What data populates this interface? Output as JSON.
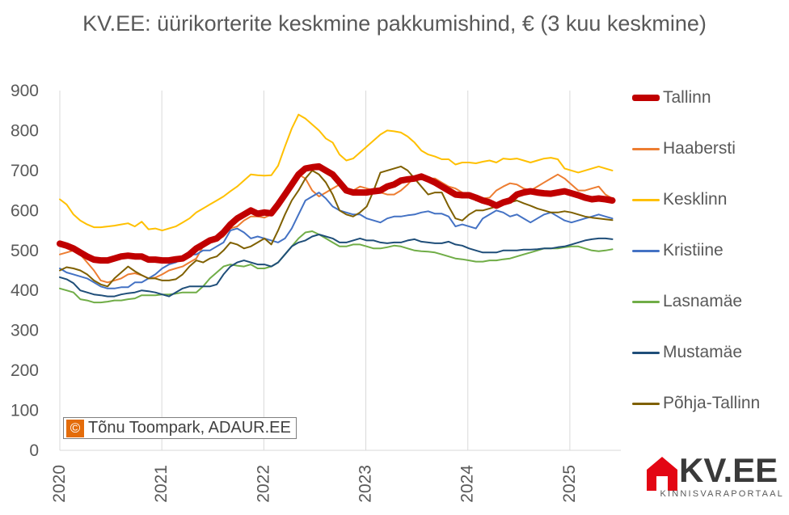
{
  "chart_data": {
    "type": "line",
    "title": "KV.EE: üürikorterite keskmine pakkumishind, € (3 kuu keskmine)",
    "ylim": [
      0,
      900
    ],
    "yticks": [
      0,
      100,
      200,
      300,
      400,
      500,
      600,
      700,
      800,
      900
    ],
    "xticks": [
      "2020",
      "2021",
      "2022",
      "2023",
      "2024",
      "2025"
    ],
    "x_range": [
      "2020-01",
      "2025-06"
    ],
    "grid": "vertical lines at years",
    "legend_position": "right",
    "series": [
      {
        "name": "Tallinn",
        "color": "#c00000",
        "width": 8,
        "values": [
          517,
          512,
          505,
          495,
          485,
          477,
          475,
          475,
          480,
          485,
          487,
          485,
          485,
          477,
          477,
          475,
          475,
          478,
          480,
          490,
          505,
          515,
          525,
          530,
          545,
          565,
          580,
          590,
          600,
          592,
          595,
          593,
          615,
          640,
          665,
          690,
          705,
          708,
          710,
          700,
          690,
          670,
          650,
          645,
          645,
          645,
          648,
          650,
          660,
          665,
          675,
          678,
          680,
          685,
          678,
          670,
          660,
          650,
          640,
          638,
          638,
          632,
          625,
          620,
          612,
          620,
          625,
          640,
          645,
          648,
          645,
          643,
          642,
          645,
          648,
          643,
          638,
          632,
          628,
          630,
          628,
          625
        ]
      },
      {
        "name": "Haabersti",
        "color": "#ed7d31",
        "width": 2,
        "values": [
          490,
          495,
          500,
          490,
          470,
          450,
          425,
          420,
          425,
          430,
          440,
          443,
          438,
          430,
          432,
          440,
          450,
          455,
          460,
          470,
          480,
          510,
          520,
          525,
          535,
          555,
          560,
          575,
          585,
          585,
          582,
          590,
          605,
          640,
          660,
          690,
          680,
          650,
          635,
          645,
          655,
          665,
          650,
          650,
          660,
          655,
          650,
          645,
          640,
          640,
          650,
          665,
          685,
          690,
          680,
          680,
          670,
          660,
          655,
          645,
          640,
          625,
          630,
          632,
          650,
          660,
          668,
          665,
          655,
          650,
          660,
          670,
          680,
          690,
          680,
          665,
          650,
          650,
          655,
          660,
          640,
          630
        ]
      },
      {
        "name": "Kesklinn",
        "color": "#ffc000",
        "width": 2,
        "values": [
          628,
          615,
          590,
          575,
          565,
          558,
          558,
          560,
          562,
          565,
          568,
          560,
          572,
          553,
          555,
          550,
          555,
          560,
          570,
          580,
          595,
          605,
          615,
          625,
          635,
          648,
          660,
          675,
          690,
          688,
          687,
          688,
          712,
          760,
          805,
          840,
          830,
          815,
          800,
          780,
          770,
          740,
          725,
          730,
          745,
          760,
          775,
          790,
          800,
          798,
          795,
          785,
          770,
          750,
          740,
          735,
          728,
          728,
          715,
          720,
          720,
          718,
          722,
          725,
          720,
          730,
          728,
          730,
          725,
          720,
          725,
          730,
          732,
          728,
          705,
          700,
          695,
          700,
          705,
          710,
          705,
          700
        ]
      },
      {
        "name": "Kristiine",
        "color": "#4472c4",
        "width": 2,
        "values": [
          455,
          445,
          440,
          435,
          430,
          420,
          410,
          405,
          405,
          408,
          408,
          420,
          420,
          430,
          440,
          455,
          465,
          470,
          480,
          490,
          490,
          500,
          500,
          510,
          520,
          550,
          555,
          545,
          530,
          535,
          530,
          525,
          520,
          530,
          555,
          590,
          625,
          635,
          645,
          630,
          610,
          600,
          595,
          590,
          590,
          580,
          575,
          570,
          580,
          585,
          585,
          588,
          590,
          595,
          598,
          592,
          592,
          585,
          560,
          565,
          560,
          555,
          580,
          590,
          600,
          595,
          585,
          590,
          580,
          570,
          580,
          590,
          595,
          585,
          575,
          570,
          575,
          580,
          585,
          590,
          585,
          580
        ]
      },
      {
        "name": "Lasnamäe",
        "color": "#70ad47",
        "width": 2,
        "values": [
          405,
          400,
          395,
          378,
          375,
          370,
          370,
          372,
          375,
          375,
          378,
          380,
          388,
          388,
          388,
          390,
          390,
          392,
          395,
          395,
          395,
          410,
          430,
          445,
          460,
          465,
          462,
          460,
          465,
          455,
          455,
          460,
          470,
          490,
          510,
          530,
          545,
          548,
          540,
          530,
          520,
          510,
          510,
          515,
          515,
          510,
          505,
          505,
          508,
          512,
          510,
          505,
          500,
          498,
          497,
          495,
          490,
          485,
          480,
          478,
          475,
          472,
          472,
          475,
          475,
          478,
          480,
          485,
          490,
          495,
          500,
          505,
          505,
          505,
          508,
          510,
          510,
          505,
          500,
          498,
          500,
          503
        ]
      },
      {
        "name": "Mustamäe",
        "color": "#1f4e79",
        "width": 2,
        "values": [
          433,
          428,
          418,
          400,
          395,
          390,
          388,
          385,
          385,
          390,
          393,
          395,
          400,
          398,
          395,
          390,
          385,
          395,
          405,
          410,
          410,
          410,
          410,
          415,
          440,
          460,
          470,
          475,
          470,
          465,
          465,
          460,
          470,
          490,
          510,
          520,
          525,
          535,
          540,
          535,
          530,
          520,
          520,
          525,
          530,
          525,
          525,
          520,
          518,
          520,
          520,
          525,
          528,
          522,
          520,
          518,
          518,
          522,
          515,
          512,
          505,
          500,
          495,
          495,
          495,
          500,
          500,
          500,
          502,
          502,
          503,
          505,
          505,
          508,
          510,
          515,
          520,
          525,
          528,
          530,
          530,
          528
        ]
      },
      {
        "name": "Põhja-Tallinn",
        "color": "#7f6000",
        "width": 2,
        "values": [
          450,
          458,
          455,
          450,
          440,
          425,
          415,
          410,
          430,
          445,
          460,
          448,
          438,
          430,
          430,
          425,
          425,
          428,
          440,
          460,
          475,
          470,
          480,
          485,
          500,
          520,
          515,
          505,
          510,
          520,
          530,
          515,
          550,
          590,
          625,
          650,
          680,
          700,
          690,
          670,
          640,
          600,
          590,
          585,
          595,
          610,
          650,
          695,
          700,
          705,
          710,
          700,
          680,
          660,
          640,
          645,
          645,
          610,
          580,
          575,
          590,
          600,
          600,
          605,
          610,
          615,
          620,
          625,
          618,
          612,
          605,
          600,
          595,
          595,
          598,
          595,
          590,
          585,
          582,
          580,
          578,
          576
        ]
      }
    ]
  },
  "copyright": {
    "icon": "©",
    "text": "Tõnu Toompark, ADAUR.EE"
  },
  "brand": {
    "name": "KV.EE",
    "tagline": "KINNISVARAPORTAAL",
    "color": "#e30613"
  }
}
